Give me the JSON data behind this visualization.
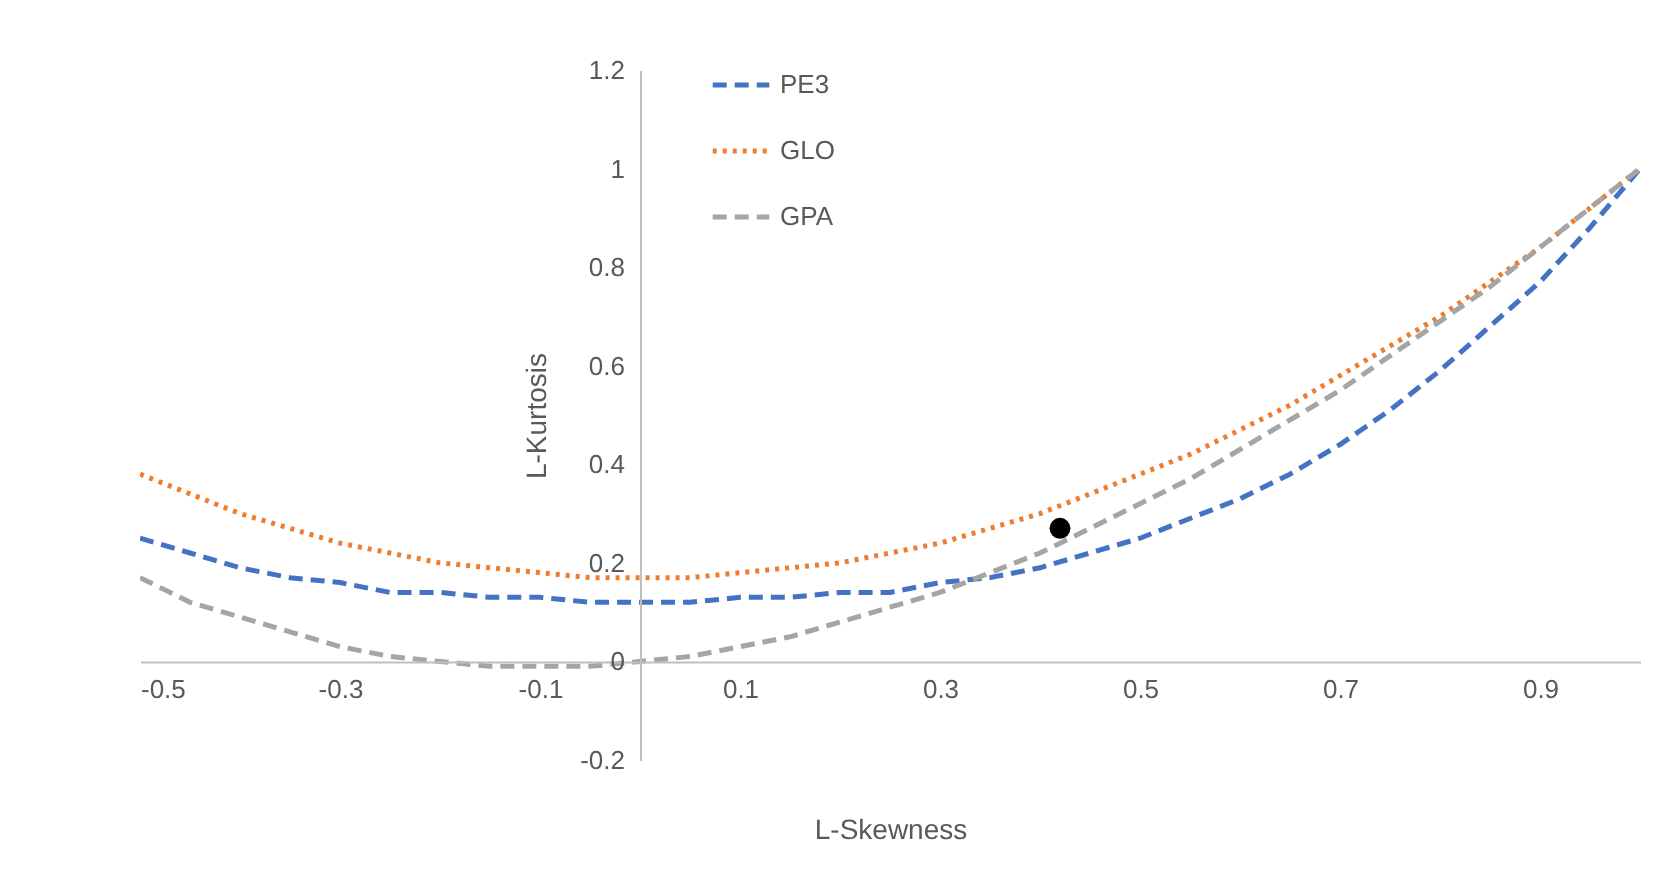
{
  "chart_data": {
    "type": "line",
    "xlabel": "L-Skewness",
    "ylabel": "L-Kurtosis",
    "xlim": [
      -0.5,
      1.0
    ],
    "ylim": [
      -0.2,
      1.2
    ],
    "xticks": [
      -0.5,
      -0.3,
      -0.1,
      0.1,
      0.3,
      0.5,
      0.7,
      0.9
    ],
    "yticks": [
      -0.2,
      {
        "value": 0,
        "label": "0"
      },
      0.2,
      0.4,
      0.6,
      0.8,
      {
        "value": 1,
        "label": "1"
      },
      1.2
    ],
    "grid": false,
    "legend": "top",
    "x": [
      -0.5,
      -0.45,
      -0.4,
      -0.35,
      -0.3,
      -0.25,
      -0.2,
      -0.15,
      -0.1,
      -0.05,
      0,
      0.05,
      0.1,
      0.15,
      0.2,
      0.25,
      0.3,
      0.35,
      0.4,
      0.45,
      0.5,
      0.55,
      0.6,
      0.65,
      0.7,
      0.75,
      0.8,
      0.85,
      0.9,
      0.95,
      1.0
    ],
    "series": [
      {
        "name": "PE3",
        "line_style": "dashed",
        "color": "#4472c4",
        "values": [
          0.25,
          0.22,
          0.19,
          0.17,
          0.16,
          0.14,
          0.14,
          0.13,
          0.13,
          0.12,
          0.12,
          0.12,
          0.13,
          0.13,
          0.14,
          0.14,
          0.16,
          0.17,
          0.19,
          0.22,
          0.25,
          0.29,
          0.33,
          0.38,
          0.44,
          0.51,
          0.59,
          0.68,
          0.77,
          0.88,
          1.0
        ]
      },
      {
        "name": "GLO",
        "line_style": "dotted",
        "color": "#ed7d31",
        "values": [
          0.38,
          0.34,
          0.3,
          0.27,
          0.24,
          0.22,
          0.2,
          0.19,
          0.18,
          0.17,
          0.17,
          0.17,
          0.18,
          0.19,
          0.2,
          0.22,
          0.24,
          0.27,
          0.3,
          0.34,
          0.38,
          0.42,
          0.47,
          0.52,
          0.58,
          0.64,
          0.7,
          0.77,
          0.84,
          0.92,
          1.0
        ]
      },
      {
        "name": "GPA",
        "line_style": "dashed",
        "color": "#a5a5a5",
        "values": [
          0.17,
          0.12,
          0.09,
          0.06,
          0.03,
          0.01,
          0.0,
          -0.01,
          -0.01,
          -0.01,
          0.0,
          0.01,
          0.03,
          0.05,
          0.08,
          0.11,
          0.14,
          0.18,
          0.22,
          0.27,
          0.32,
          0.37,
          0.43,
          0.49,
          0.55,
          0.62,
          0.69,
          0.76,
          0.84,
          0.92,
          1.0
        ]
      },
      {
        "type": "scatter",
        "marker": "circle",
        "color": "#000000",
        "x": [
          0.42
        ],
        "values": [
          0.27
        ]
      }
    ]
  }
}
